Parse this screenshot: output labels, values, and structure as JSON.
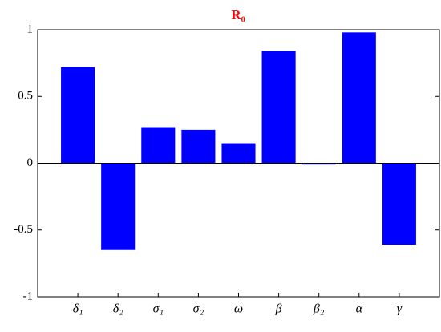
{
  "chart_data": {
    "type": "bar",
    "title": "R₀",
    "categories": [
      "δ₁",
      "δ₂",
      "σ₁",
      "σ₂",
      "ω",
      "β",
      "β₂",
      "α",
      "γ"
    ],
    "values": [
      0.72,
      -0.65,
      0.27,
      0.25,
      0.15,
      0.84,
      -0.01,
      0.98,
      -0.61
    ],
    "color": "#0000ff",
    "ylim": [
      -1,
      1
    ],
    "yticks": [
      -1,
      -0.5,
      0,
      0.5,
      1
    ],
    "grid": false
  }
}
